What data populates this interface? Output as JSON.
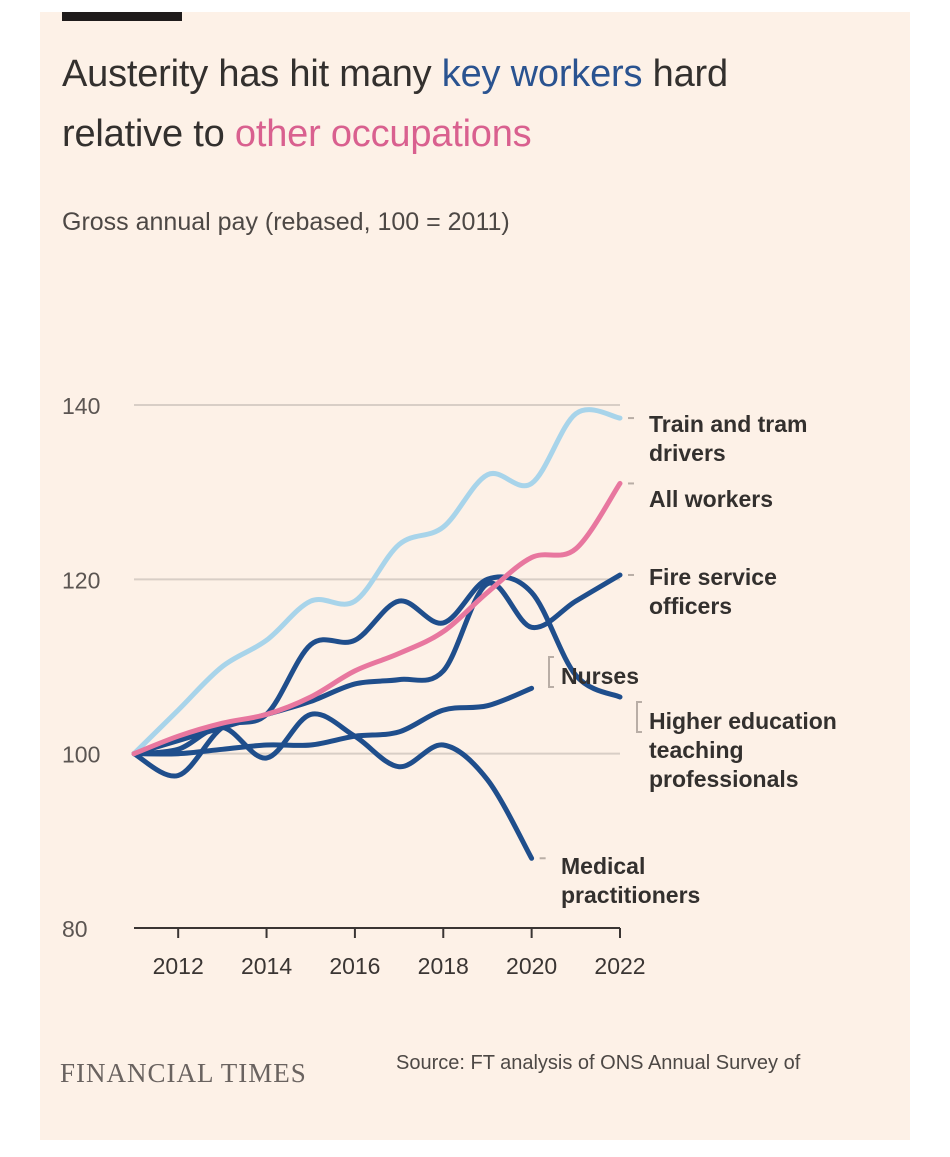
{
  "header": {
    "title_part1": "Austerity has hit many ",
    "title_key": "key workers",
    "title_part2": " hard",
    "title_part3": "relative to ",
    "title_other": "other occupations",
    "subtitle": "Gross annual pay (rebased, 100 = 2011)"
  },
  "footer": {
    "logo": "FINANCIAL TIMES",
    "source": "Source: FT analysis of ONS Annual Survey of"
  },
  "colors": {
    "background": "#fdf1e7",
    "key_workers": "#1f4e8c",
    "train": "#a8d4ea",
    "all_workers": "#e8779f",
    "text": "#33302e",
    "grid": "#d8cec6"
  },
  "chart_data": {
    "type": "line",
    "title": "Austerity has hit many key workers hard relative to other occupations",
    "ylabel": "Gross annual pay (rebased, 100 = 2011)",
    "xlabel": "",
    "xlim": [
      2011,
      2022
    ],
    "ylim": [
      80,
      140
    ],
    "x_ticks": [
      2012,
      2014,
      2016,
      2018,
      2020,
      2022
    ],
    "y_ticks": [
      80,
      100,
      120,
      140
    ],
    "grid": true,
    "series": [
      {
        "name": "Train and tram drivers",
        "label_lines": [
          "Train and tram",
          "drivers"
        ],
        "color": "#a8d4ea",
        "points": [
          [
            2011,
            100
          ],
          [
            2012,
            105
          ],
          [
            2013,
            110
          ],
          [
            2014,
            113
          ],
          [
            2015,
            117.5
          ],
          [
            2016,
            117.5
          ],
          [
            2017,
            124
          ],
          [
            2018,
            126
          ],
          [
            2019,
            132
          ],
          [
            2020,
            131
          ],
          [
            2021,
            139
          ],
          [
            2022,
            138.5
          ]
        ]
      },
      {
        "name": "All workers",
        "label_lines": [
          "All workers"
        ],
        "color": "#e8779f",
        "points": [
          [
            2011,
            100
          ],
          [
            2012,
            102
          ],
          [
            2013,
            103.5
          ],
          [
            2014,
            104.5
          ],
          [
            2015,
            106.5
          ],
          [
            2016,
            109.5
          ],
          [
            2017,
            111.5
          ],
          [
            2018,
            114
          ],
          [
            2019,
            118.5
          ],
          [
            2020,
            122.5
          ],
          [
            2021,
            123.5
          ],
          [
            2022,
            131
          ]
        ]
      },
      {
        "name": "Fire service officers",
        "label_lines": [
          "Fire service",
          "officers"
        ],
        "color": "#1f4e8c",
        "points": [
          [
            2011,
            100
          ],
          [
            2012,
            101.5
          ],
          [
            2013,
            103
          ],
          [
            2014,
            104.5
          ],
          [
            2015,
            106
          ],
          [
            2016,
            108
          ],
          [
            2017,
            108.5
          ],
          [
            2018,
            109.5
          ],
          [
            2019,
            119.5
          ],
          [
            2020,
            114.5
          ],
          [
            2021,
            117.5
          ],
          [
            2022,
            120.5
          ]
        ]
      },
      {
        "name": "Higher education teaching professionals",
        "label_lines": [
          "Higher education",
          "teaching",
          "professionals"
        ],
        "color": "#1f4e8c",
        "points": [
          [
            2011,
            100
          ],
          [
            2012,
            97.5
          ],
          [
            2013,
            103
          ],
          [
            2014,
            104.5
          ],
          [
            2015,
            112.5
          ],
          [
            2016,
            113
          ],
          [
            2017,
            117.5
          ],
          [
            2018,
            115
          ],
          [
            2019,
            120
          ],
          [
            2020,
            118.5
          ],
          [
            2021,
            109
          ],
          [
            2022,
            106.5
          ]
        ]
      },
      {
        "name": "Nurses",
        "label_lines": [
          "Nurses"
        ],
        "color": "#1f4e8c",
        "points": [
          [
            2011,
            100
          ],
          [
            2012,
            100
          ],
          [
            2013,
            100.5
          ],
          [
            2014,
            101
          ],
          [
            2015,
            101
          ],
          [
            2016,
            102
          ],
          [
            2017,
            102.5
          ],
          [
            2018,
            105
          ],
          [
            2019,
            105.5
          ],
          [
            2020,
            107.5
          ]
        ]
      },
      {
        "name": "Medical practitioners",
        "label_lines": [
          "Medical",
          "practitioners"
        ],
        "color": "#1f4e8c",
        "points": [
          [
            2011,
            100
          ],
          [
            2012,
            100.5
          ],
          [
            2013,
            103
          ],
          [
            2014,
            99.5
          ],
          [
            2015,
            104.5
          ],
          [
            2016,
            102
          ],
          [
            2017,
            98.5
          ],
          [
            2018,
            101
          ],
          [
            2019,
            97
          ],
          [
            2020,
            88
          ]
        ]
      }
    ]
  }
}
